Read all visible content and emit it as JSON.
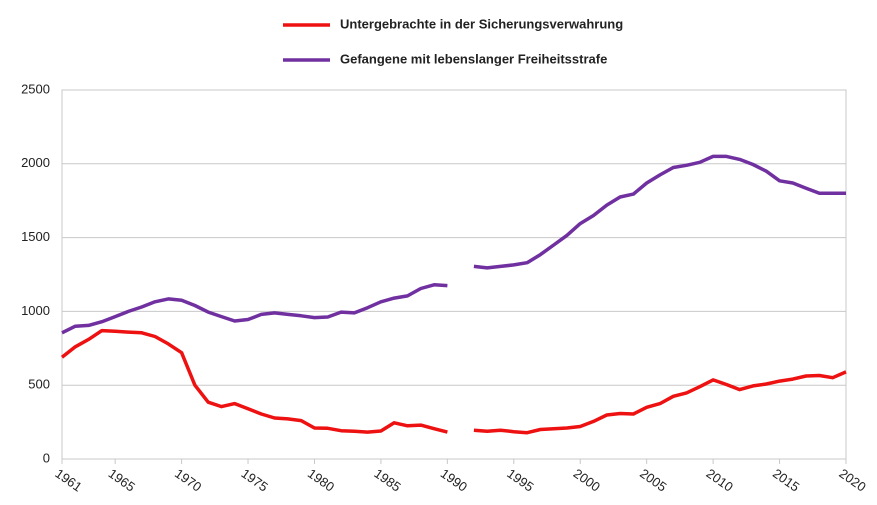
{
  "chart_data": {
    "type": "line",
    "x": [
      1961,
      1962,
      1963,
      1964,
      1965,
      1966,
      1967,
      1968,
      1969,
      1970,
      1971,
      1972,
      1973,
      1974,
      1975,
      1976,
      1977,
      1978,
      1979,
      1980,
      1981,
      1982,
      1983,
      1984,
      1985,
      1986,
      1987,
      1988,
      1989,
      1990,
      1991,
      1992,
      1993,
      1994,
      1995,
      1996,
      1997,
      1998,
      1999,
      2000,
      2001,
      2002,
      2003,
      2004,
      2005,
      2006,
      2007,
      2008,
      2009,
      2010,
      2011,
      2012,
      2013,
      2014,
      2015,
      2016,
      2017,
      2018,
      2019,
      2020
    ],
    "series": [
      {
        "name": "Untergebrachte in der Sicherungsverwahrung",
        "color": "#ee1111",
        "values": [
          690,
          760,
          810,
          870,
          865,
          860,
          855,
          830,
          780,
          720,
          500,
          385,
          355,
          375,
          340,
          305,
          278,
          272,
          260,
          210,
          208,
          192,
          188,
          182,
          190,
          245,
          225,
          230,
          205,
          182,
          null,
          195,
          188,
          195,
          185,
          178,
          200,
          205,
          210,
          220,
          255,
          298,
          308,
          305,
          350,
          375,
          425,
          448,
          490,
          536,
          505,
          470,
          495,
          508,
          528,
          541,
          562,
          566,
          551,
          590
        ]
      },
      {
        "name": "Gefangene mit lebenslanger Freiheitsstrafe",
        "color": "#7030a0",
        "values": [
          855,
          900,
          905,
          930,
          965,
          1000,
          1030,
          1065,
          1085,
          1075,
          1040,
          995,
          965,
          935,
          945,
          980,
          990,
          980,
          970,
          958,
          962,
          995,
          990,
          1025,
          1065,
          1090,
          1105,
          1155,
          1180,
          1175,
          null,
          1305,
          1295,
          1305,
          1315,
          1330,
          1385,
          1450,
          1515,
          1595,
          1650,
          1720,
          1775,
          1795,
          1870,
          1925,
          1975,
          1990,
          2010,
          2050,
          2050,
          2030,
          1995,
          1950,
          1885,
          1870,
          1835,
          1800,
          1800,
          1800
        ]
      }
    ],
    "xlim": [
      1961,
      2020
    ],
    "xticks": [
      1961,
      1965,
      1970,
      1975,
      1980,
      1985,
      1990,
      1995,
      2000,
      2005,
      2010,
      2015,
      2020
    ],
    "ylim": [
      0,
      2500
    ],
    "yticks": [
      0,
      500,
      1000,
      1500,
      2000,
      2500
    ],
    "grid": true
  }
}
